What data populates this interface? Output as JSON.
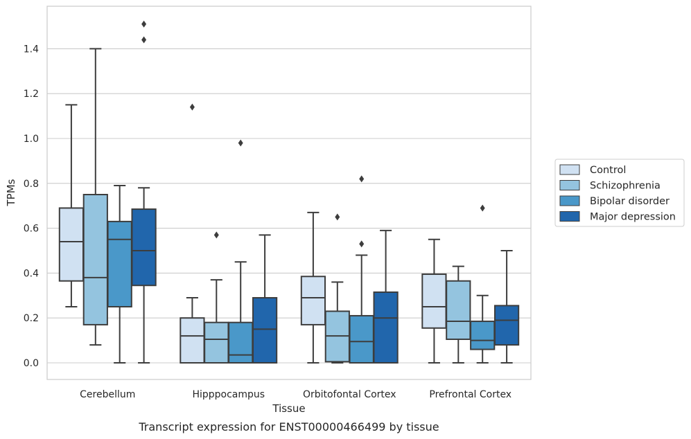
{
  "caption": "Transcript expression for ENST00000466499 by tissue",
  "chart_data": {
    "type": "box",
    "xlabel": "Tissue",
    "ylabel": "TPMs",
    "ylim": [
      -0.07,
      1.59
    ],
    "yticks": [
      0.0,
      0.2,
      0.4,
      0.6,
      0.8,
      1.0,
      1.2,
      1.4
    ],
    "ytick_labels": [
      "0.0",
      "0.2",
      "0.4",
      "0.6",
      "0.8",
      "1.0",
      "1.2",
      "1.4"
    ],
    "grid": true,
    "legend_placement": "right",
    "categories": [
      "Cerebellum",
      "Hipppocampus",
      "Orbitofontal Cortex",
      "Prefrontal Cortex"
    ],
    "series": [
      {
        "name": "Control",
        "color": "#d0e1f2",
        "boxes": [
          {
            "whislo": 0.25,
            "q1": 0.365,
            "med": 0.54,
            "q3": 0.69,
            "whishi": 1.15,
            "fliers": []
          },
          {
            "whislo": 0.0,
            "q1": 0.0,
            "med": 0.12,
            "q3": 0.2,
            "whishi": 0.29,
            "fliers": [
              1.14
            ]
          },
          {
            "whislo": 0.0,
            "q1": 0.17,
            "med": 0.29,
            "q3": 0.385,
            "whishi": 0.67,
            "fliers": []
          },
          {
            "whislo": 0.0,
            "q1": 0.155,
            "med": 0.25,
            "q3": 0.395,
            "whishi": 0.55,
            "fliers": []
          }
        ]
      },
      {
        "name": "Schizophrenia",
        "color": "#94c4df",
        "boxes": [
          {
            "whislo": 0.08,
            "q1": 0.17,
            "med": 0.38,
            "q3": 0.75,
            "whishi": 1.4,
            "fliers": []
          },
          {
            "whislo": 0.0,
            "q1": 0.0,
            "med": 0.105,
            "q3": 0.18,
            "whishi": 0.37,
            "fliers": [
              0.57
            ]
          },
          {
            "whislo": 0.0,
            "q1": 0.005,
            "med": 0.12,
            "q3": 0.23,
            "whishi": 0.36,
            "fliers": [
              0.65
            ]
          },
          {
            "whislo": 0.0,
            "q1": 0.105,
            "med": 0.185,
            "q3": 0.365,
            "whishi": 0.43,
            "fliers": []
          }
        ]
      },
      {
        "name": "Bipolar disorder",
        "color": "#4a98c9",
        "boxes": [
          {
            "whislo": 0.0,
            "q1": 0.25,
            "med": 0.55,
            "q3": 0.63,
            "whishi": 0.79,
            "fliers": []
          },
          {
            "whislo": 0.0,
            "q1": 0.0,
            "med": 0.035,
            "q3": 0.18,
            "whishi": 0.45,
            "fliers": [
              0.98
            ]
          },
          {
            "whislo": 0.0,
            "q1": 0.0,
            "med": 0.095,
            "q3": 0.21,
            "whishi": 0.48,
            "fliers": [
              0.53,
              0.82
            ]
          },
          {
            "whislo": 0.0,
            "q1": 0.06,
            "med": 0.1,
            "q3": 0.185,
            "whishi": 0.3,
            "fliers": [
              0.69
            ]
          }
        ]
      },
      {
        "name": "Major depression",
        "color": "#2166ac",
        "boxes": [
          {
            "whislo": 0.0,
            "q1": 0.345,
            "med": 0.5,
            "q3": 0.685,
            "whishi": 0.78,
            "fliers": [
              1.44,
              1.51
            ]
          },
          {
            "whislo": 0.0,
            "q1": 0.0,
            "med": 0.15,
            "q3": 0.29,
            "whishi": 0.57,
            "fliers": []
          },
          {
            "whislo": 0.0,
            "q1": 0.0,
            "med": 0.2,
            "q3": 0.315,
            "whishi": 0.59,
            "fliers": []
          },
          {
            "whislo": 0.0,
            "q1": 0.08,
            "med": 0.19,
            "q3": 0.255,
            "whishi": 0.5,
            "fliers": []
          }
        ]
      }
    ]
  }
}
